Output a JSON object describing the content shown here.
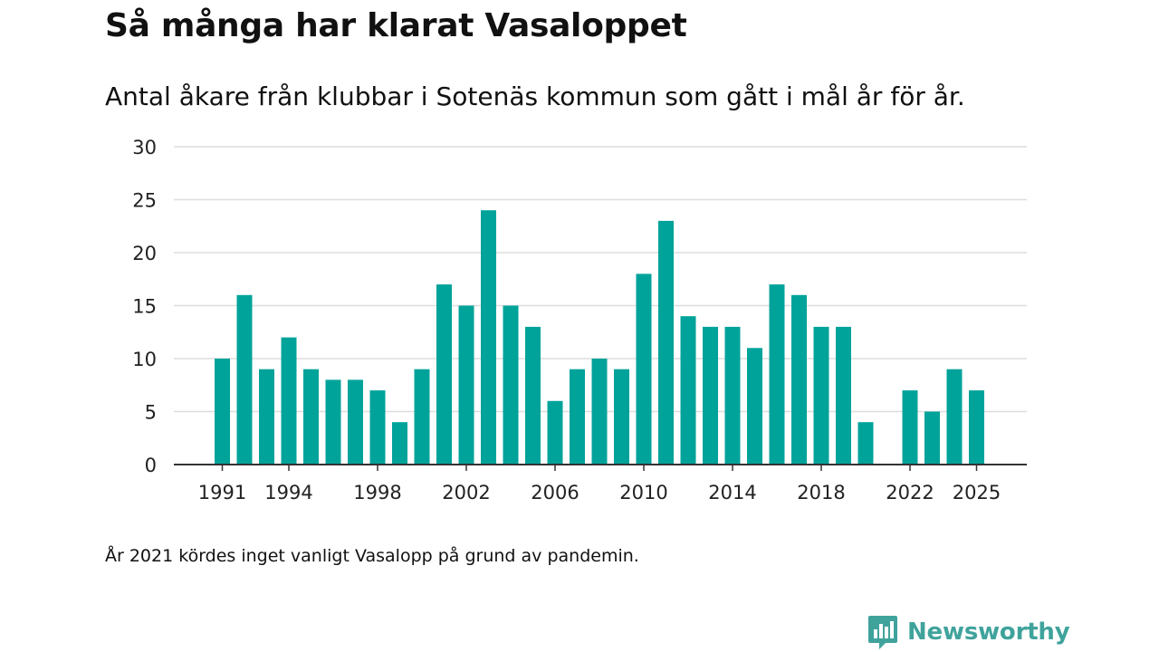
{
  "title": "Så många har klarat Vasaloppet",
  "subtitle": "Antal åkare från klubbar i Sotenäs kommun som gått i mål år för år.",
  "footnote": "År 2021 kördes inget vanligt Vasalopp på grund av pandemin.",
  "brand": {
    "name": "Newsworthy",
    "color": "#3fa39c",
    "icon": "newsworthy-logo-icon"
  },
  "colors": {
    "bar": "#00a39a",
    "grid": "#dddddd",
    "axis": "#333333"
  },
  "chart_data": {
    "type": "bar",
    "title": "Så många har klarat Vasaloppet",
    "xlabel": "",
    "ylabel": "",
    "ylim": [
      0,
      30
    ],
    "yticks": [
      0,
      5,
      10,
      15,
      20,
      25,
      30
    ],
    "xtick_labels": [
      1991,
      1994,
      1998,
      2002,
      2006,
      2010,
      2014,
      2018,
      2022,
      2025
    ],
    "x": [
      1991,
      1992,
      1993,
      1994,
      1995,
      1996,
      1997,
      1998,
      1999,
      2000,
      2001,
      2002,
      2003,
      2004,
      2005,
      2006,
      2007,
      2008,
      2009,
      2010,
      2011,
      2012,
      2013,
      2014,
      2015,
      2016,
      2017,
      2018,
      2019,
      2020,
      2021,
      2022,
      2023,
      2024,
      2025
    ],
    "values": [
      10,
      16,
      9,
      12,
      9,
      8,
      8,
      7,
      4,
      9,
      17,
      15,
      24,
      15,
      13,
      6,
      9,
      10,
      9,
      18,
      23,
      14,
      13,
      13,
      11,
      17,
      16,
      13,
      13,
      4,
      null,
      7,
      5,
      9,
      7
    ],
    "grid": true
  }
}
